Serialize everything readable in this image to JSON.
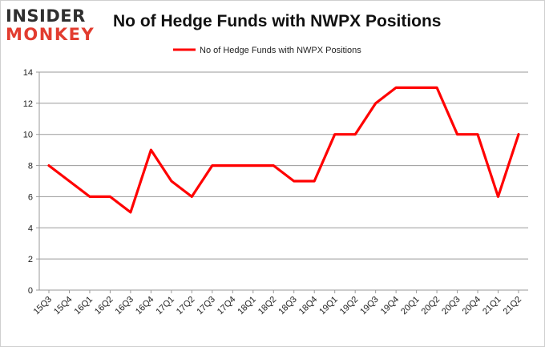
{
  "logo": {
    "line1": "INSIDER",
    "line2": "MONKEY"
  },
  "chart_data": {
    "type": "line",
    "title": "No of Hedge Funds with NWPX Positions",
    "categories": [
      "15Q3",
      "15Q4",
      "16Q1",
      "16Q2",
      "16Q3",
      "16Q4",
      "17Q1",
      "17Q2",
      "17Q3",
      "17Q4",
      "18Q1",
      "18Q2",
      "18Q3",
      "18Q4",
      "19Q1",
      "19Q2",
      "19Q3",
      "19Q4",
      "20Q1",
      "20Q2",
      "20Q3",
      "20Q4",
      "21Q1",
      "21Q2"
    ],
    "series": [
      {
        "name": "No of Hedge Funds with NWPX Positions",
        "color": "#ff0000",
        "values": [
          8,
          7,
          6,
          6,
          5,
          9,
          7,
          6,
          8,
          8,
          8,
          8,
          7,
          7,
          10,
          10,
          12,
          13,
          13,
          13,
          10,
          10,
          6,
          10
        ]
      }
    ],
    "ylim": [
      0,
      14
    ],
    "yticks": [
      0,
      2,
      4,
      6,
      8,
      10,
      12,
      14
    ],
    "grid": true,
    "legend": "top-center",
    "xlabel": "",
    "ylabel": ""
  }
}
